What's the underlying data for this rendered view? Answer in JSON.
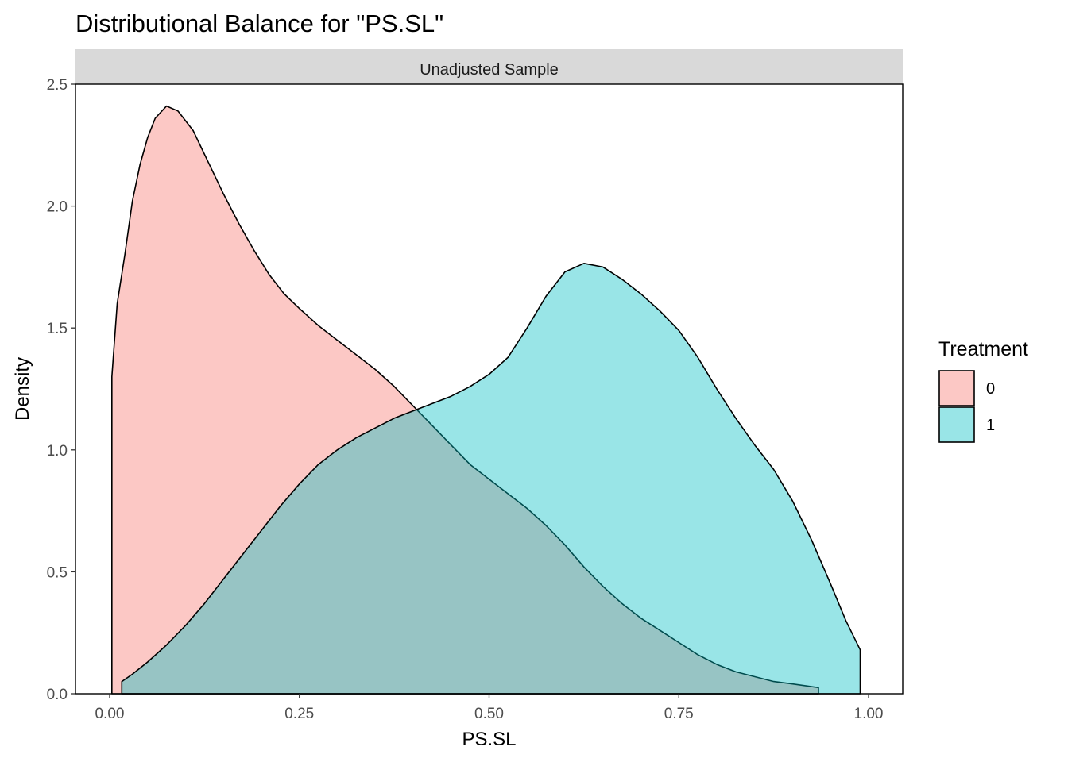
{
  "chart_data": {
    "type": "area",
    "title": "Distributional Balance for \"PS.SL\"",
    "facet_label": "Unadjusted Sample",
    "xlabel": "PS.SL",
    "ylabel": "Density",
    "xlim": [
      -0.045,
      1.045
    ],
    "ylim": [
      0,
      2.5
    ],
    "x_ticks": [
      0.0,
      0.25,
      0.5,
      0.75,
      1.0
    ],
    "x_tick_labels": [
      "0.00",
      "0.25",
      "0.50",
      "0.75",
      "1.00"
    ],
    "y_ticks": [
      0.0,
      0.5,
      1.0,
      1.5,
      2.0,
      2.5
    ],
    "y_tick_labels": [
      "0.0",
      "0.5",
      "1.0",
      "1.5",
      "2.0",
      "2.5"
    ],
    "grid": false,
    "legend_position": "right",
    "legend_title": "Treatment",
    "series": [
      {
        "name": "0",
        "color": "#F8766D",
        "points": [
          [
            0.003,
            1.3
          ],
          [
            0.01,
            1.6
          ],
          [
            0.02,
            1.8
          ],
          [
            0.03,
            2.02
          ],
          [
            0.04,
            2.17
          ],
          [
            0.05,
            2.28
          ],
          [
            0.06,
            2.36
          ],
          [
            0.075,
            2.41
          ],
          [
            0.09,
            2.39
          ],
          [
            0.11,
            2.31
          ],
          [
            0.13,
            2.18
          ],
          [
            0.15,
            2.05
          ],
          [
            0.17,
            1.93
          ],
          [
            0.19,
            1.82
          ],
          [
            0.21,
            1.72
          ],
          [
            0.23,
            1.64
          ],
          [
            0.25,
            1.58
          ],
          [
            0.275,
            1.51
          ],
          [
            0.3,
            1.45
          ],
          [
            0.325,
            1.39
          ],
          [
            0.35,
            1.33
          ],
          [
            0.375,
            1.26
          ],
          [
            0.4,
            1.18
          ],
          [
            0.425,
            1.1
          ],
          [
            0.45,
            1.02
          ],
          [
            0.475,
            0.94
          ],
          [
            0.5,
            0.88
          ],
          [
            0.525,
            0.82
          ],
          [
            0.55,
            0.76
          ],
          [
            0.575,
            0.69
          ],
          [
            0.6,
            0.61
          ],
          [
            0.625,
            0.52
          ],
          [
            0.65,
            0.44
          ],
          [
            0.675,
            0.37
          ],
          [
            0.7,
            0.31
          ],
          [
            0.725,
            0.26
          ],
          [
            0.75,
            0.21
          ],
          [
            0.775,
            0.16
          ],
          [
            0.8,
            0.12
          ],
          [
            0.825,
            0.09
          ],
          [
            0.85,
            0.07
          ],
          [
            0.875,
            0.05
          ],
          [
            0.9,
            0.04
          ],
          [
            0.934,
            0.025
          ]
        ]
      },
      {
        "name": "1",
        "color": "#00BFC4",
        "points": [
          [
            0.016,
            0.05
          ],
          [
            0.03,
            0.08
          ],
          [
            0.05,
            0.13
          ],
          [
            0.075,
            0.2
          ],
          [
            0.1,
            0.28
          ],
          [
            0.125,
            0.37
          ],
          [
            0.15,
            0.47
          ],
          [
            0.175,
            0.57
          ],
          [
            0.2,
            0.67
          ],
          [
            0.225,
            0.77
          ],
          [
            0.25,
            0.86
          ],
          [
            0.275,
            0.94
          ],
          [
            0.3,
            1.0
          ],
          [
            0.325,
            1.05
          ],
          [
            0.35,
            1.09
          ],
          [
            0.375,
            1.13
          ],
          [
            0.4,
            1.16
          ],
          [
            0.425,
            1.19
          ],
          [
            0.45,
            1.22
          ],
          [
            0.475,
            1.26
          ],
          [
            0.5,
            1.31
          ],
          [
            0.525,
            1.38
          ],
          [
            0.55,
            1.5
          ],
          [
            0.575,
            1.63
          ],
          [
            0.6,
            1.73
          ],
          [
            0.625,
            1.765
          ],
          [
            0.65,
            1.75
          ],
          [
            0.675,
            1.7
          ],
          [
            0.7,
            1.64
          ],
          [
            0.725,
            1.57
          ],
          [
            0.75,
            1.49
          ],
          [
            0.775,
            1.38
          ],
          [
            0.8,
            1.25
          ],
          [
            0.825,
            1.13
          ],
          [
            0.85,
            1.02
          ],
          [
            0.875,
            0.92
          ],
          [
            0.9,
            0.79
          ],
          [
            0.925,
            0.63
          ],
          [
            0.95,
            0.45
          ],
          [
            0.97,
            0.3
          ],
          [
            0.989,
            0.18
          ]
        ]
      }
    ]
  }
}
